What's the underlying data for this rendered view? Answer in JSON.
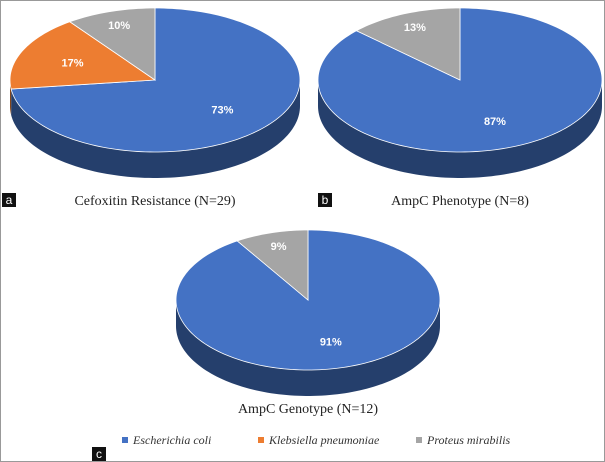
{
  "chart_data": [
    {
      "type": "pie",
      "panel_label": "a",
      "title": "Cefoxitin Resistance (N=29)",
      "categories": [
        "Escherichia coli",
        "Klebsiella pneumoniae",
        "Proteus mirabilis"
      ],
      "values": [
        73,
        17,
        10
      ],
      "value_labels": [
        "73%",
        "17%",
        "10%"
      ],
      "colors": [
        "#4472c4",
        "#ed7d31",
        "#a5a5a5"
      ]
    },
    {
      "type": "pie",
      "panel_label": "b",
      "title": "AmpC Phenotype (N=8)",
      "categories": [
        "Escherichia coli",
        "Proteus mirabilis"
      ],
      "values": [
        87,
        13
      ],
      "value_labels": [
        "87%",
        "13%"
      ],
      "colors": [
        "#4472c4",
        "#a5a5a5"
      ]
    },
    {
      "type": "pie",
      "panel_label": "c",
      "title": "AmpC Genotype (N=12)",
      "categories": [
        "Escherichia coli",
        "Proteus mirabilis"
      ],
      "values": [
        91,
        9
      ],
      "value_labels": [
        "91%",
        "9%"
      ],
      "colors": [
        "#4472c4",
        "#a5a5a5"
      ]
    }
  ]
}
